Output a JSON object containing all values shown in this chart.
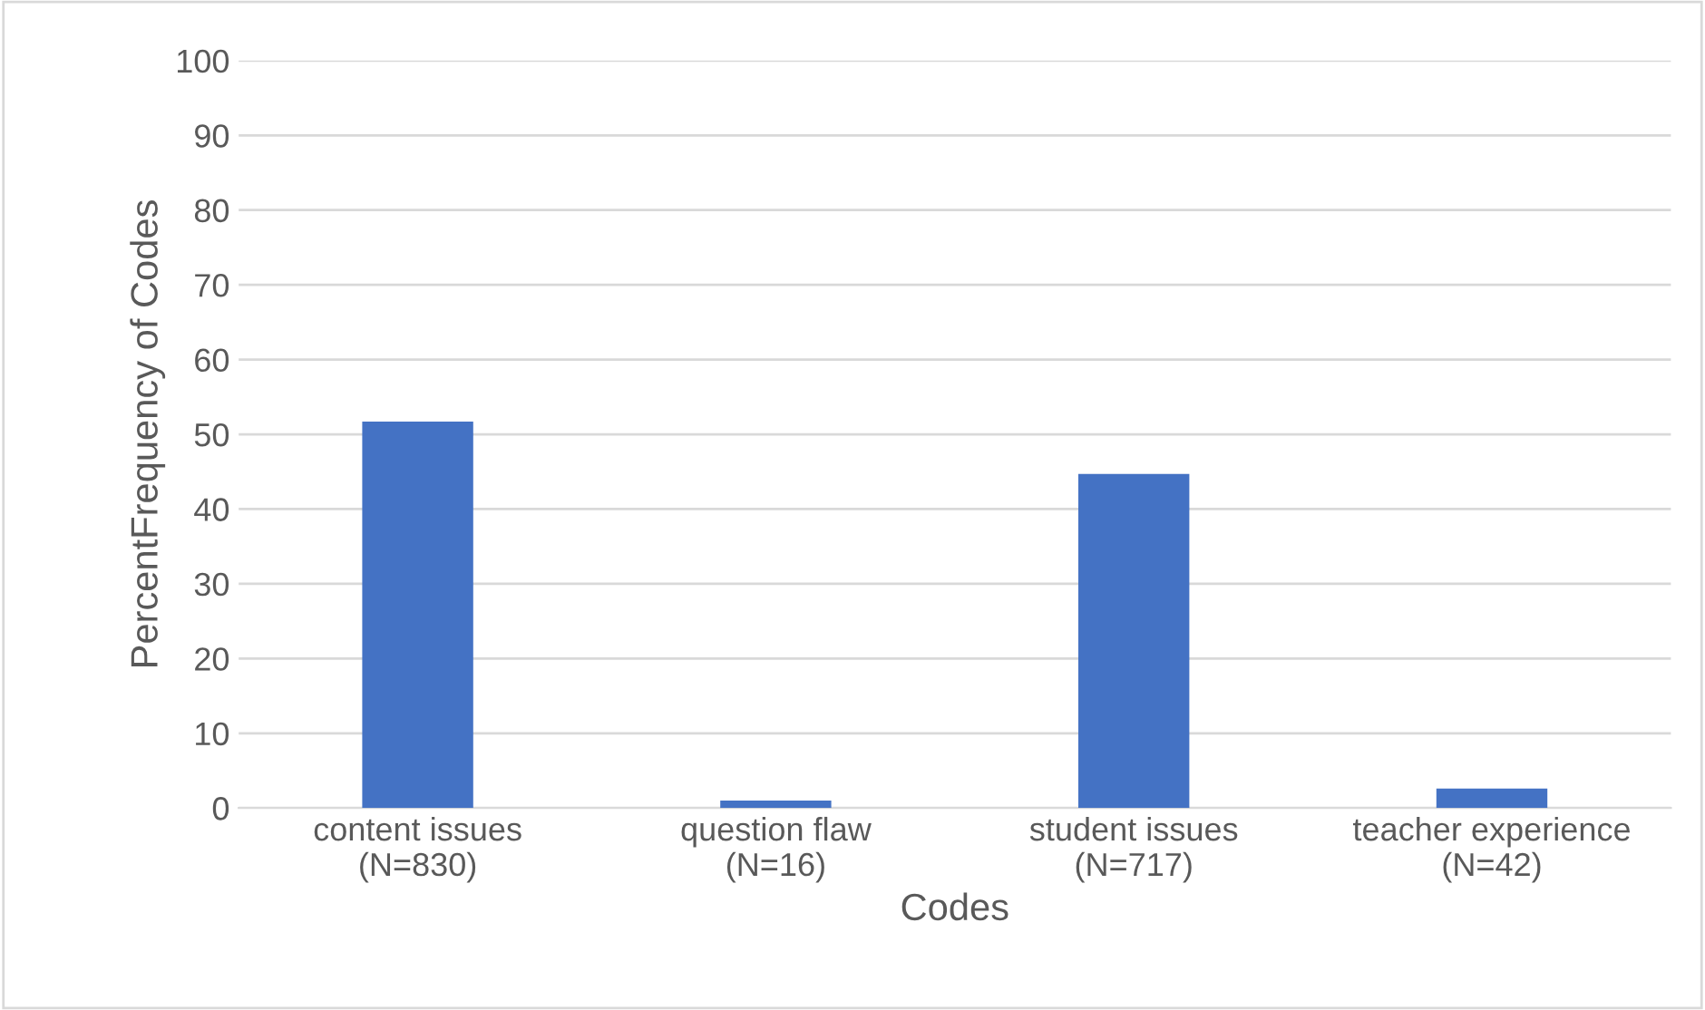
{
  "chart_data": {
    "type": "bar",
    "xlabel": "Codes",
    "ylabel": "PercentFrequency of Codes",
    "categories": [
      "content issues\n(N=830)",
      "question flaw\n(N=16)",
      "student issues\n(N=717)",
      "teacher experience\n(N=42)"
    ],
    "values": [
      51.7,
      1.0,
      44.7,
      2.6
    ],
    "color": "#4472c4",
    "ylim": [
      0,
      100
    ],
    "yticks": [
      0,
      10,
      20,
      30,
      40,
      50,
      60,
      70,
      80,
      90,
      100
    ],
    "grid": "y"
  }
}
